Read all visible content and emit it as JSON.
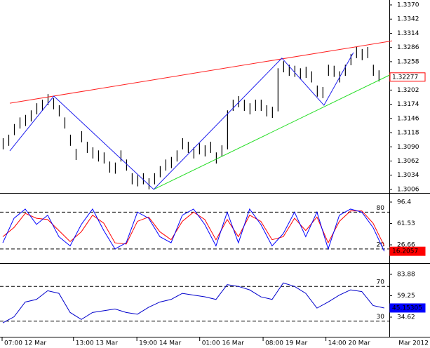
{
  "chart_data": [
    {
      "type": "ohlc",
      "color": "#000000",
      "x": [
        0,
        1,
        2,
        3,
        4,
        5,
        6,
        7,
        8,
        9,
        10,
        11,
        12,
        13,
        14,
        15,
        16,
        17,
        18,
        19,
        20,
        21,
        22,
        23,
        24,
        25,
        26,
        27,
        28,
        29,
        30,
        31,
        32,
        33,
        34,
        35,
        36,
        37,
        38,
        39,
        40,
        41,
        42,
        43,
        44,
        45,
        46,
        47,
        48,
        49,
        50,
        51,
        52,
        53,
        54,
        55,
        56,
        57,
        58,
        59,
        60,
        61,
        62,
        63,
        64,
        65,
        66,
        67
      ],
      "high": [
        1.3107,
        1.3114,
        1.3135,
        1.3148,
        1.3153,
        1.3162,
        1.3176,
        1.3183,
        1.3194,
        1.3186,
        1.3172,
        1.3148,
        1.3114,
        1.3086,
        1.3121,
        1.31,
        1.3089,
        1.3083,
        1.3079,
        1.3061,
        1.3059,
        1.3083,
        1.3065,
        1.3038,
        1.3034,
        1.3038,
        1.3028,
        1.3038,
        1.3052,
        1.3065,
        1.307,
        1.3083,
        1.3107,
        1.31,
        1.3089,
        1.3097,
        1.3093,
        1.31,
        1.3079,
        1.3093,
        1.3162,
        1.3183,
        1.319,
        1.3183,
        1.3176,
        1.3183,
        1.3183,
        1.3172,
        1.3169,
        1.3245,
        1.3259,
        1.3252,
        1.325,
        1.3245,
        1.3248,
        1.3239,
        1.3211,
        1.3208,
        1.3252,
        1.325,
        1.3239,
        1.3252,
        1.3273,
        1.3287,
        1.3283,
        1.3287,
        1.3252,
        1.3241
      ],
      "low": [
        1.3085,
        1.3092,
        1.3113,
        1.3126,
        1.3131,
        1.314,
        1.3154,
        1.3161,
        1.3172,
        1.3164,
        1.315,
        1.3126,
        1.3092,
        1.3064,
        1.3099,
        1.3078,
        1.3067,
        1.3061,
        1.3057,
        1.3039,
        1.3037,
        1.3061,
        1.3043,
        1.3016,
        1.3012,
        1.3016,
        1.3006,
        1.3016,
        1.303,
        1.3043,
        1.3048,
        1.3061,
        1.3085,
        1.3078,
        1.3067,
        1.3075,
        1.3071,
        1.3078,
        1.3057,
        1.3071,
        1.3085,
        1.3161,
        1.3168,
        1.3161,
        1.3154,
        1.3161,
        1.3161,
        1.315,
        1.3147,
        1.316,
        1.3237,
        1.323,
        1.3228,
        1.3223,
        1.3226,
        1.3217,
        1.3189,
        1.3186,
        1.323,
        1.3228,
        1.3217,
        1.323,
        1.3251,
        1.3265,
        1.3261,
        1.3265,
        1.323,
        1.3219
      ],
      "xlim": [
        -0.5,
        68.9
      ],
      "ylim": [
        1.2999,
        1.33797
      ],
      "yticks": [
        {
          "value": 1.337,
          "label": "1.3370"
        },
        {
          "value": 1.3342,
          "label": "1.3342"
        },
        {
          "value": 1.3314,
          "label": "1.3314"
        },
        {
          "value": 1.3286,
          "label": "1.3286"
        },
        {
          "value": 1.3258,
          "label": "1.3258"
        },
        {
          "value": 1.323,
          "label": "1.3230"
        },
        {
          "value": 1.3202,
          "label": "1.3202"
        },
        {
          "value": 1.3174,
          "label": "1.3174"
        },
        {
          "value": 1.3146,
          "label": "1.3146"
        },
        {
          "value": 1.3118,
          "label": "1.3118"
        },
        {
          "value": 1.309,
          "label": "1.3090"
        },
        {
          "value": 1.3062,
          "label": "1.3062"
        },
        {
          "value": 1.3034,
          "label": "1.3034"
        },
        {
          "value": 1.3006,
          "label": "1.3006"
        }
      ],
      "trendlines": [
        {
          "color": "#ff2020",
          "x": [
            1.25,
            69.4
          ],
          "y": [
            1.3176,
            1.3299
          ]
        },
        {
          "color": "#22dd22",
          "x": [
            26.9,
            69.4
          ],
          "y": [
            1.3006,
            1.3234
          ]
        },
        {
          "color": "#2020ee",
          "x": [
            1.25,
            9.1,
            26.9,
            49.75,
            57.25,
            62.5
          ],
          "y": [
            1.3082,
            1.319,
            1.3006,
            1.3265,
            1.3172,
            1.3276
          ]
        }
      ],
      "current_value": 1.32277,
      "current_color": "#ff0000"
    },
    {
      "type": "line",
      "x": [
        0,
        2,
        4,
        6,
        8,
        10,
        12,
        14,
        16,
        18,
        20,
        22,
        24,
        26,
        28,
        30,
        32,
        34,
        36,
        38,
        40,
        42,
        44,
        46,
        48,
        50,
        52,
        54,
        56,
        58,
        60,
        62,
        64,
        66,
        68
      ],
      "series": [
        {
          "color": "#ff0000",
          "values": [
            40,
            55,
            78,
            70,
            68,
            50,
            32,
            48,
            75,
            62,
            30,
            28,
            65,
            72,
            48,
            35,
            65,
            80,
            68,
            35,
            68,
            40,
            75,
            65,
            35,
            40,
            70,
            50,
            72,
            30,
            65,
            82,
            82,
            62,
            25
          ]
        },
        {
          "color": "#0000ff",
          "values": [
            30,
            70,
            85,
            60,
            75,
            40,
            25,
            60,
            85,
            50,
            20,
            30,
            80,
            70,
            40,
            30,
            75,
            85,
            60,
            25,
            80,
            30,
            85,
            60,
            25,
            45,
            80,
            40,
            80,
            20,
            75,
            85,
            80,
            55,
            16.2057
          ]
        }
      ],
      "xlim": [
        -0.5,
        68.9
      ],
      "ylim": [
        2.66,
        108.97
      ],
      "yticks": [
        96.4,
        61.53,
        26.66
      ],
      "levels": [
        80,
        20
      ],
      "current_value": 16.2057,
      "current_color": "#ff0000"
    },
    {
      "type": "line",
      "x": [
        0,
        2,
        4,
        6,
        8,
        10,
        12,
        14,
        16,
        18,
        20,
        22,
        24,
        26,
        28,
        30,
        32,
        34,
        36,
        38,
        40,
        42,
        44,
        46,
        48,
        50,
        52,
        54,
        56,
        58,
        60,
        62,
        64,
        66,
        68
      ],
      "series": [
        {
          "color": "#0000cc",
          "values": [
            28,
            35,
            52,
            55,
            65,
            62,
            40,
            32,
            40,
            42,
            44,
            40,
            38,
            46,
            52,
            55,
            62,
            60,
            58,
            55,
            72,
            70,
            66,
            58,
            55,
            74,
            70,
            62,
            45,
            52,
            60,
            66,
            64,
            48,
            45.15305
          ]
        }
      ],
      "xlim": [
        -0.5,
        68.9
      ],
      "ylim": [
        12.01,
        94.38
      ],
      "yticks": [
        83.88,
        59.25,
        34.62
      ],
      "levels": [
        70,
        30
      ],
      "current_value": 45.15305,
      "current_color": "#0000ff",
      "xticks": [
        {
          "value": -0.125,
          "label": "07:00 12 Mar"
        },
        {
          "value": 12.6,
          "label": "13:00 13 Mar"
        },
        {
          "value": 23.9,
          "label": "19:00 14 Mar"
        },
        {
          "value": 35.1,
          "label": "01:00 16 Mar"
        },
        {
          "value": 46.4,
          "label": "08:00 19 Mar"
        },
        {
          "value": 57.6,
          "label": "14:00 20 Mar"
        }
      ],
      "period_label": "Mar 2012"
    }
  ]
}
